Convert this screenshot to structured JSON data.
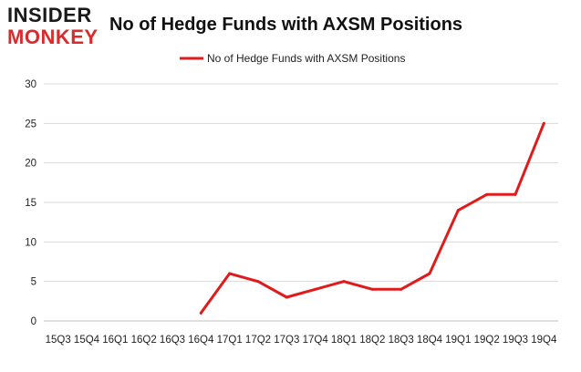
{
  "logo": {
    "line1": "INSIDER",
    "line2": "MONKEY"
  },
  "chart_data": {
    "type": "line",
    "title": "No of Hedge Funds with AXSM Positions",
    "categories": [
      "15Q3",
      "15Q4",
      "16Q1",
      "16Q2",
      "16Q3",
      "16Q4",
      "17Q1",
      "17Q2",
      "17Q3",
      "17Q4",
      "18Q1",
      "18Q2",
      "18Q3",
      "18Q4",
      "19Q1",
      "19Q2",
      "19Q3",
      "19Q4"
    ],
    "series": [
      {
        "name": "No of Hedge Funds with AXSM Positions",
        "color": "#e01b1b",
        "values": [
          null,
          null,
          null,
          null,
          null,
          1,
          6,
          5,
          3,
          4,
          5,
          4,
          4,
          6,
          14,
          16,
          16,
          25
        ]
      }
    ],
    "ylim": [
      0,
      30
    ],
    "yticks": [
      0,
      5,
      10,
      15,
      20,
      25,
      30
    ],
    "grid": true,
    "legend": "top-center",
    "xlabel": "",
    "ylabel": ""
  }
}
